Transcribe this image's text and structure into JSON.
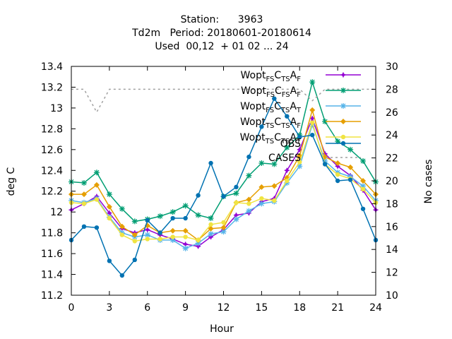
{
  "chart_data": {
    "type": "line",
    "title_lines": [
      "Station:      3963",
      "Td2m   Period: 20180601-20180614",
      "Used  00,12  + 01 02 ... 24"
    ],
    "xlabel": "Hour",
    "ylabel": "deg C",
    "y2label": "No cases",
    "xlim": [
      0,
      24
    ],
    "ylim": [
      11.2,
      13.4
    ],
    "y2lim": [
      10,
      30
    ],
    "xticks": [
      "0",
      "3",
      "6",
      "9",
      "12",
      "15",
      "18",
      "21",
      "24"
    ],
    "yticks": [
      "11.2",
      "11.4",
      "11.6",
      "11.8",
      "12",
      "12.2",
      "12.4",
      "12.6",
      "12.8",
      "13",
      "13.2",
      "13.4"
    ],
    "y2ticks": [
      "10",
      "12",
      "14",
      "16",
      "18",
      "20",
      "22",
      "24",
      "26",
      "28",
      "30"
    ],
    "grid": false,
    "legend_position": "top-right",
    "x": [
      0,
      1,
      2,
      3,
      4,
      5,
      6,
      7,
      8,
      9,
      10,
      11,
      12,
      13,
      14,
      15,
      16,
      17,
      18,
      19,
      20,
      21,
      22,
      23,
      24
    ],
    "series": [
      {
        "name_parts": [
          [
            "Wopt",
            ""
          ],
          [
            "FS",
            "sub"
          ],
          [
            "C",
            ""
          ],
          [
            "TS",
            "sub"
          ],
          [
            "A",
            ""
          ],
          [
            "F",
            "sub"
          ]
        ],
        "color": "#9400d3",
        "marker": "plus",
        "axis": "y1",
        "values": [
          12.02,
          12.08,
          12.15,
          11.99,
          11.84,
          11.8,
          11.83,
          11.78,
          11.74,
          11.69,
          11.67,
          11.76,
          11.83,
          11.97,
          11.99,
          12.1,
          12.13,
          12.4,
          12.6,
          12.9,
          12.56,
          12.44,
          12.35,
          12.21,
          12.02
        ]
      },
      {
        "name_parts": [
          [
            "Wopt",
            ""
          ],
          [
            "FS",
            "sub"
          ],
          [
            "C",
            ""
          ],
          [
            "FS",
            "sub"
          ],
          [
            "A",
            ""
          ],
          [
            "F",
            "sub"
          ]
        ],
        "color": "#009e73",
        "marker": "star",
        "axis": "y1",
        "values": [
          12.29,
          12.28,
          12.38,
          12.17,
          12.03,
          11.91,
          11.93,
          11.96,
          12.0,
          12.06,
          11.97,
          11.94,
          12.15,
          12.18,
          12.35,
          12.47,
          12.46,
          12.62,
          12.74,
          13.25,
          12.87,
          12.68,
          12.6,
          12.49,
          12.29
        ]
      },
      {
        "name_parts": [
          [
            "Wopt",
            ""
          ],
          [
            "FS",
            "sub"
          ],
          [
            "C",
            ""
          ],
          [
            "TS",
            "sub"
          ],
          [
            "A",
            ""
          ],
          [
            "T",
            "sub"
          ]
        ],
        "color": "#56b4e9",
        "marker": "star",
        "axis": "y1",
        "values": [
          12.11,
          12.09,
          12.13,
          11.95,
          11.8,
          11.76,
          11.78,
          11.73,
          11.73,
          11.65,
          11.7,
          11.79,
          11.81,
          11.93,
          12.01,
          12.08,
          12.1,
          12.28,
          12.44,
          12.84,
          12.49,
          12.38,
          12.34,
          12.25,
          12.11
        ]
      },
      {
        "name_parts": [
          [
            "Wopt",
            ""
          ],
          [
            "TS",
            "sub"
          ],
          [
            "C",
            ""
          ],
          [
            "TS",
            "sub"
          ],
          [
            "A",
            ""
          ],
          [
            "F",
            "sub"
          ]
        ],
        "color": "#e69f00",
        "marker": "diamond",
        "axis": "y1",
        "values": [
          12.17,
          12.17,
          12.26,
          12.05,
          11.86,
          11.78,
          11.87,
          11.8,
          11.82,
          11.82,
          11.73,
          11.84,
          11.85,
          12.09,
          12.12,
          12.24,
          12.25,
          12.33,
          12.54,
          12.98,
          12.53,
          12.47,
          12.43,
          12.3,
          12.17
        ]
      },
      {
        "name_parts": [
          [
            "Wopt",
            ""
          ],
          [
            "TS",
            "sub"
          ],
          [
            "C",
            ""
          ],
          [
            "TS",
            "sub"
          ],
          [
            "A",
            ""
          ],
          [
            "T",
            "sub"
          ]
        ],
        "color": "#f0e442",
        "marker": "circle",
        "axis": "y1",
        "values": [
          12.09,
          12.08,
          12.12,
          11.94,
          11.78,
          11.72,
          11.74,
          11.74,
          11.76,
          11.76,
          11.73,
          11.88,
          11.9,
          12.09,
          12.08,
          12.13,
          12.11,
          12.3,
          12.48,
          12.86,
          12.46,
          12.36,
          12.32,
          12.22,
          12.09
        ]
      },
      {
        "name_parts": [
          [
            "OBS",
            ""
          ]
        ],
        "color": "#0072b2",
        "marker": "circle",
        "axis": "y1",
        "values": [
          11.73,
          11.86,
          11.85,
          11.53,
          11.39,
          11.54,
          11.92,
          11.8,
          11.94,
          11.94,
          12.16,
          12.47,
          12.15,
          12.24,
          12.53,
          12.82,
          13.09,
          12.92,
          12.72,
          12.74,
          12.46,
          12.3,
          12.31,
          12.03,
          11.73
        ]
      },
      {
        "name_parts": [
          [
            "CASES",
            ""
          ]
        ],
        "color": "#a0a0a0",
        "marker": "none",
        "dashed": true,
        "axis": "y2",
        "values": [
          28,
          28,
          26,
          28,
          28,
          28,
          28,
          28,
          28,
          28,
          28,
          28,
          28,
          28,
          28,
          28,
          28,
          28,
          28,
          27,
          28,
          28,
          28,
          28,
          28
        ]
      }
    ]
  }
}
